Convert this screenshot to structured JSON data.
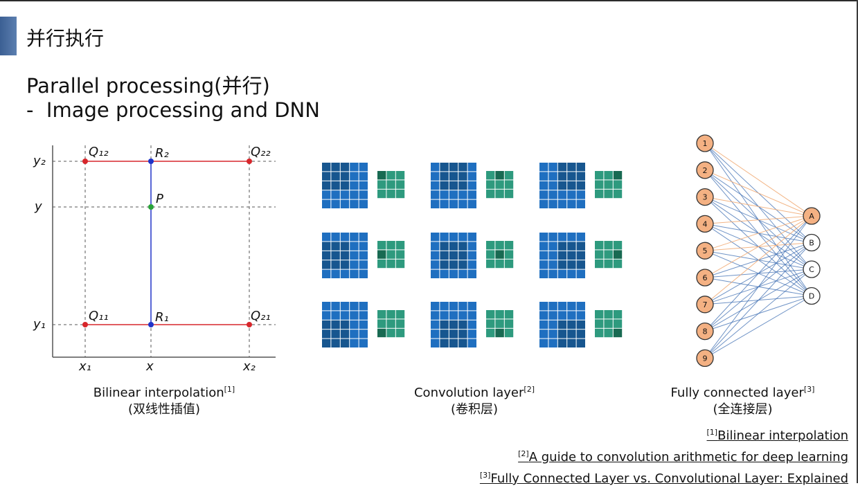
{
  "slide": {
    "title": "并行执行",
    "heading": "Parallel processing(并行)",
    "bullet": "-  Image processing and DNN"
  },
  "bilinear": {
    "labels": {
      "y2": "y₂",
      "y": "y",
      "y1": "y₁",
      "x1": "x₁",
      "x": "x",
      "x2": "x₂",
      "q12": "Q₁₂",
      "r2": "R₂",
      "q22": "Q₂₂",
      "p": "P",
      "q11": "Q₁₁",
      "r1": "R₁",
      "q21": "Q₂₁"
    },
    "caption_line1": "Bilinear interpolation",
    "caption_ref": "[1]",
    "caption_line2": "(双线性插值)"
  },
  "convolution": {
    "caption_line1": "Convolution layer",
    "caption_ref": "[2]",
    "caption_line2": "(卷积层)"
  },
  "fully_connected": {
    "inputs": [
      "1",
      "2",
      "3",
      "4",
      "5",
      "6",
      "7",
      "8",
      "9"
    ],
    "outputs": [
      "A",
      "B",
      "C",
      "D"
    ],
    "caption_line1": "Fully connected layer",
    "caption_ref": "[3]",
    "caption_line2": "(全连接层)"
  },
  "references": [
    {
      "num": "[1]",
      "text": "Bilinear interpolation"
    },
    {
      "num": "[2]",
      "text": "A guide to convolution arithmetic for deep learning"
    },
    {
      "num": "[3]",
      "text": "Fully Connected Layer vs. Convolutional Layer: Explained"
    }
  ],
  "colors": {
    "accent": "#4a6ea3",
    "red": "#d7262b",
    "blue": "#2033c8",
    "green": "#2aa33a",
    "conv_input": "#1f6fc0",
    "conv_output": "#2e9a7e",
    "node_input": "#f4b183",
    "edge_blue": "#3f6fb3",
    "edge_orange": "#f0a870"
  }
}
